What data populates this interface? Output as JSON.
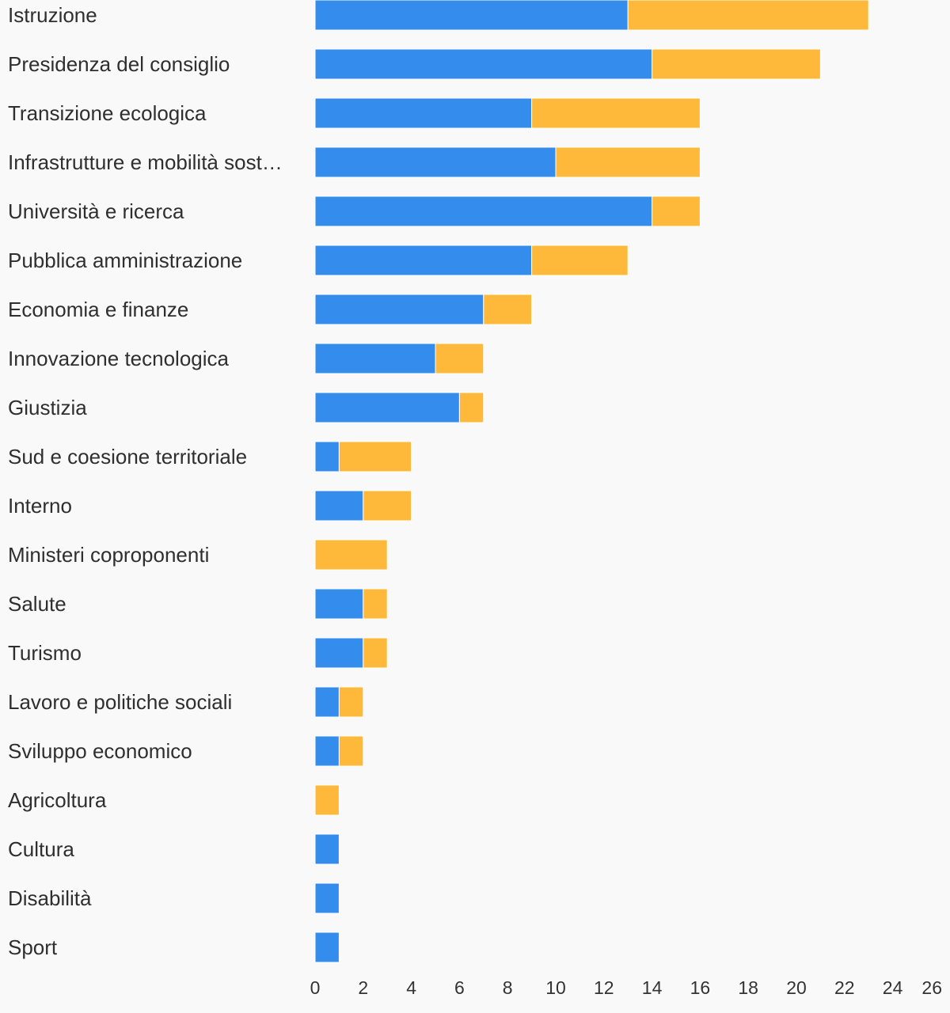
{
  "chart_data": {
    "type": "bar",
    "orientation": "horizontal",
    "stacked": true,
    "categories": [
      "Istruzione",
      "Presidenza del consiglio",
      "Transizione ecologica",
      "Infrastrutture e mobilità sost…",
      "Università e ricerca",
      "Pubblica amministrazione",
      "Economia e finanze",
      "Innovazione tecnologica",
      "Giustizia",
      "Sud e coesione territoriale",
      "Interno",
      "Ministeri coproponenti",
      "Salute",
      "Turismo",
      "Lavoro e politiche sociali",
      "Sviluppo economico",
      "Agricoltura",
      "Cultura",
      "Disabilità",
      "Sport"
    ],
    "series": [
      {
        "color": "#348ced",
        "values": [
          13,
          14,
          9,
          10,
          14,
          9,
          7,
          5,
          6,
          1,
          2,
          0,
          2,
          2,
          1,
          1,
          0,
          1,
          1,
          1
        ]
      },
      {
        "color": "#ffb93a",
        "values": [
          10,
          7,
          7,
          6,
          2,
          4,
          2,
          2,
          1,
          3,
          2,
          3,
          1,
          1,
          1,
          1,
          1,
          0,
          0,
          0
        ]
      }
    ],
    "x_ticks": [
      "0",
      "2",
      "4",
      "6",
      "8",
      "10",
      "12",
      "14",
      "16",
      "18",
      "20",
      "22",
      "24",
      "26"
    ],
    "xlim": [
      0,
      26
    ],
    "grid": false,
    "legend": "none"
  }
}
